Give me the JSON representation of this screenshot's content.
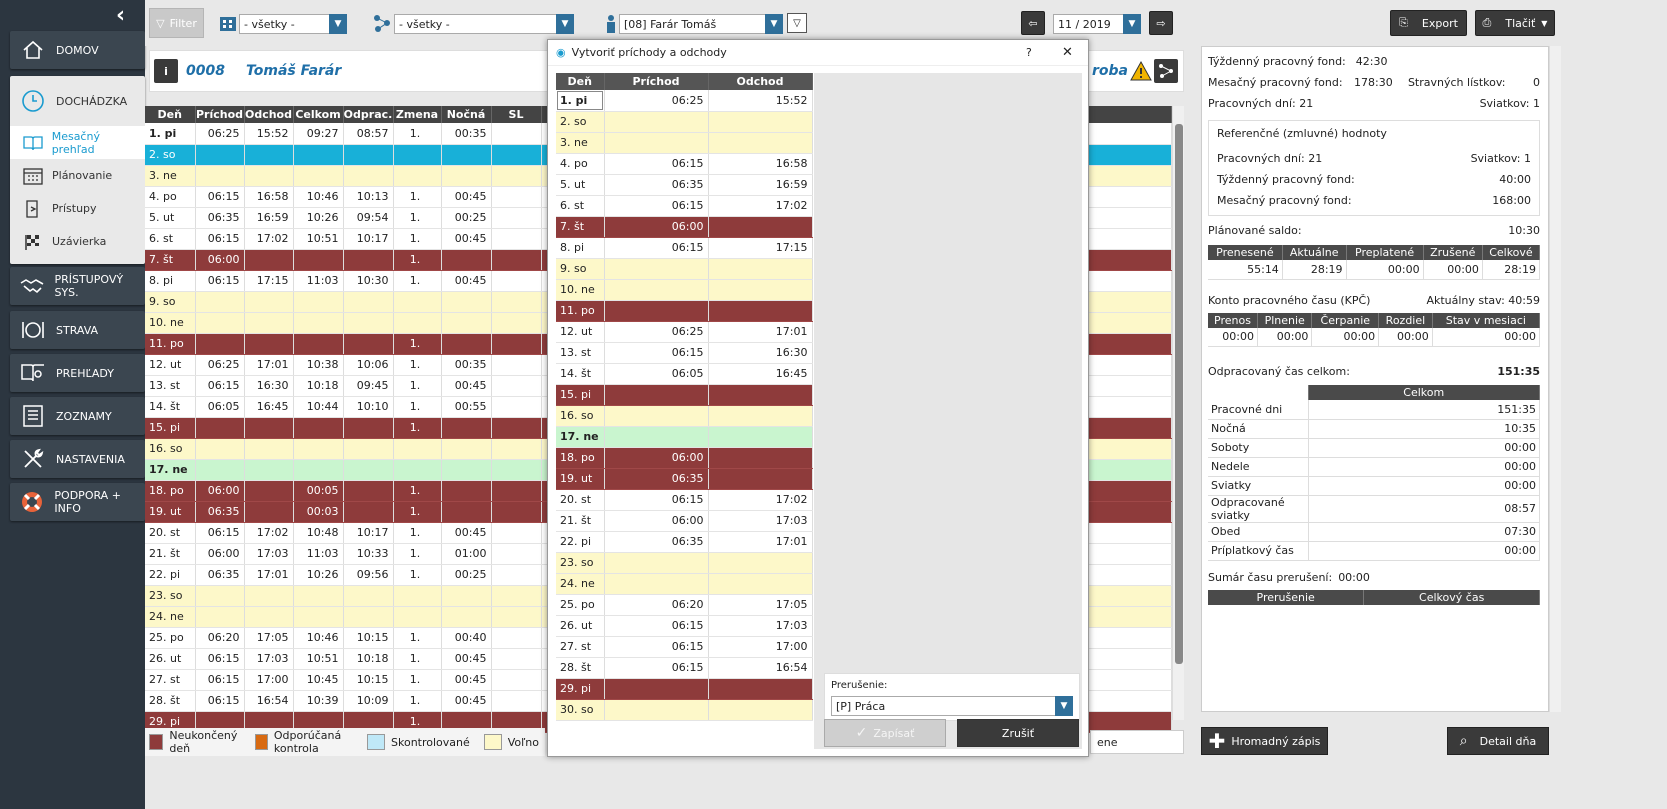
{
  "sidebar": {
    "home": "DOMOV",
    "attendance": "DOCHÁDZKA",
    "sub": [
      "Mesačný prehľad",
      "Plánovanie",
      "Prístupy",
      "Uzávierka"
    ],
    "access_sys": "PRÍSTUPOVÝ SYS.",
    "food": "STRAVA",
    "overviews": "PREHĽADY",
    "lists": "ZOZNAMY",
    "settings": "NASTAVENIA",
    "support": "PODPORA + INFO"
  },
  "toolbar": {
    "filter": "Filter",
    "select1": "- všetky -",
    "select2": "- všetky -",
    "employee": "[08] Farár Tomáš",
    "period": "11 / 2019",
    "export": "Export",
    "print": "Tlačiť"
  },
  "employee": {
    "id": "0008",
    "name": "Tomáš Farár",
    "dept": "roba"
  },
  "grid": {
    "headers": [
      "Deň",
      "Príchod",
      "Odchod",
      "Celkom",
      "Odprac.",
      "Zmena",
      "Nočná",
      "SL"
    ],
    "rows": [
      {
        "t": "h",
        "c": [
          "1. pi",
          "06:25",
          "15:52",
          "09:27",
          "08:57",
          "1.",
          "00:35",
          ""
        ]
      },
      {
        "t": "b",
        "c": [
          "2. so",
          "",
          "",
          "",
          "",
          "",
          "",
          ""
        ]
      },
      {
        "t": "y",
        "c": [
          "3. ne",
          "",
          "",
          "",
          "",
          "",
          "",
          ""
        ]
      },
      {
        "t": "w",
        "c": [
          "4. po",
          "06:15",
          "16:58",
          "10:46",
          "10:13",
          "1.",
          "00:45",
          ""
        ]
      },
      {
        "t": "w",
        "c": [
          "5. ut",
          "06:35",
          "16:59",
          "10:26",
          "09:54",
          "1.",
          "00:25",
          ""
        ]
      },
      {
        "t": "w",
        "c": [
          "6. st",
          "06:15",
          "17:02",
          "10:51",
          "10:17",
          "1.",
          "00:45",
          ""
        ]
      },
      {
        "t": "r",
        "c": [
          "7. št",
          "06:00",
          "",
          "",
          "",
          "1.",
          "",
          ""
        ]
      },
      {
        "t": "w",
        "c": [
          "8. pi",
          "06:15",
          "17:15",
          "11:03",
          "10:30",
          "1.",
          "00:45",
          ""
        ]
      },
      {
        "t": "y",
        "c": [
          "9. so",
          "",
          "",
          "",
          "",
          "",
          "",
          ""
        ]
      },
      {
        "t": "y",
        "c": [
          "10. ne",
          "",
          "",
          "",
          "",
          "",
          "",
          ""
        ]
      },
      {
        "t": "r",
        "c": [
          "11. po",
          "",
          "",
          "",
          "",
          "1.",
          "",
          ""
        ]
      },
      {
        "t": "w",
        "c": [
          "12. ut",
          "06:25",
          "17:01",
          "10:38",
          "10:06",
          "1.",
          "00:35",
          ""
        ]
      },
      {
        "t": "w",
        "c": [
          "13. st",
          "06:15",
          "16:30",
          "10:18",
          "09:45",
          "1.",
          "00:45",
          ""
        ]
      },
      {
        "t": "w",
        "c": [
          "14. št",
          "06:05",
          "16:45",
          "10:44",
          "10:10",
          "1.",
          "00:55",
          ""
        ]
      },
      {
        "t": "r",
        "c": [
          "15. pi",
          "",
          "",
          "",
          "",
          "1.",
          "",
          ""
        ]
      },
      {
        "t": "y",
        "c": [
          "16. so",
          "",
          "",
          "",
          "",
          "",
          "",
          ""
        ]
      },
      {
        "t": "g",
        "c": [
          "17. ne",
          "",
          "",
          "",
          "",
          "",
          "",
          ""
        ]
      },
      {
        "t": "r",
        "c": [
          "18. po",
          "06:00",
          "",
          "00:05",
          "",
          "1.",
          "",
          ""
        ]
      },
      {
        "t": "r",
        "c": [
          "19. ut",
          "06:35",
          "",
          "00:03",
          "",
          "1.",
          "",
          ""
        ]
      },
      {
        "t": "w",
        "c": [
          "20. st",
          "06:15",
          "17:02",
          "10:48",
          "10:17",
          "1.",
          "00:45",
          ""
        ]
      },
      {
        "t": "w",
        "c": [
          "21. št",
          "06:00",
          "17:03",
          "11:03",
          "10:33",
          "1.",
          "01:00",
          ""
        ]
      },
      {
        "t": "w",
        "c": [
          "22. pi",
          "06:35",
          "17:01",
          "10:26",
          "09:56",
          "1.",
          "00:25",
          ""
        ]
      },
      {
        "t": "y",
        "c": [
          "23. so",
          "",
          "",
          "",
          "",
          "",
          "",
          ""
        ]
      },
      {
        "t": "y",
        "c": [
          "24. ne",
          "",
          "",
          "",
          "",
          "",
          "",
          ""
        ]
      },
      {
        "t": "w",
        "c": [
          "25. po",
          "06:20",
          "17:05",
          "10:46",
          "10:15",
          "1.",
          "00:40",
          ""
        ]
      },
      {
        "t": "w",
        "c": [
          "26. ut",
          "06:15",
          "17:03",
          "10:51",
          "10:18",
          "1.",
          "00:45",
          ""
        ]
      },
      {
        "t": "w",
        "c": [
          "27. st",
          "06:15",
          "17:00",
          "10:45",
          "10:15",
          "1.",
          "00:45",
          ""
        ]
      },
      {
        "t": "w",
        "c": [
          "28. št",
          "06:15",
          "16:54",
          "10:39",
          "10:09",
          "1.",
          "00:45",
          ""
        ]
      },
      {
        "t": "r",
        "c": [
          "29. pi",
          "",
          "",
          "",
          "",
          "1.",
          "",
          ""
        ]
      }
    ]
  },
  "legend": [
    "Neukončený deň",
    "Odporúčaná kontrola",
    "Skontrolované",
    "Voľno",
    "ene"
  ],
  "dialog": {
    "title": "Vytvoriť príchody a odchody",
    "help": "?",
    "close": "✕",
    "headers": [
      "Deň",
      "Príchod",
      "Odchod"
    ],
    "rows": [
      {
        "t": "h",
        "c": [
          "1. pi",
          "06:25",
          "15:52"
        ]
      },
      {
        "t": "y",
        "c": [
          "2. so",
          "",
          ""
        ]
      },
      {
        "t": "y",
        "c": [
          "3. ne",
          "",
          ""
        ]
      },
      {
        "t": "w",
        "c": [
          "4. po",
          "06:15",
          "16:58"
        ]
      },
      {
        "t": "w",
        "c": [
          "5. ut",
          "06:35",
          "16:59"
        ]
      },
      {
        "t": "w",
        "c": [
          "6. st",
          "06:15",
          "17:02"
        ]
      },
      {
        "t": "r",
        "c": [
          "7. št",
          "06:00",
          ""
        ]
      },
      {
        "t": "w",
        "c": [
          "8. pi",
          "06:15",
          "17:15"
        ]
      },
      {
        "t": "y",
        "c": [
          "9. so",
          "",
          ""
        ]
      },
      {
        "t": "y",
        "c": [
          "10. ne",
          "",
          ""
        ]
      },
      {
        "t": "r",
        "c": [
          "11. po",
          "",
          ""
        ]
      },
      {
        "t": "w",
        "c": [
          "12. ut",
          "06:25",
          "17:01"
        ]
      },
      {
        "t": "w",
        "c": [
          "13. st",
          "06:15",
          "16:30"
        ]
      },
      {
        "t": "w",
        "c": [
          "14. št",
          "06:05",
          "16:45"
        ]
      },
      {
        "t": "r",
        "c": [
          "15. pi",
          "",
          ""
        ]
      },
      {
        "t": "y",
        "c": [
          "16. so",
          "",
          ""
        ]
      },
      {
        "t": "g",
        "c": [
          "17. ne",
          "",
          ""
        ]
      },
      {
        "t": "r",
        "c": [
          "18. po",
          "06:00",
          ""
        ]
      },
      {
        "t": "r",
        "c": [
          "19. ut",
          "06:35",
          ""
        ]
      },
      {
        "t": "w",
        "c": [
          "20. st",
          "06:15",
          "17:02"
        ]
      },
      {
        "t": "w",
        "c": [
          "21. št",
          "06:00",
          "17:03"
        ]
      },
      {
        "t": "w",
        "c": [
          "22. pi",
          "06:35",
          "17:01"
        ]
      },
      {
        "t": "y",
        "c": [
          "23. so",
          "",
          ""
        ]
      },
      {
        "t": "y",
        "c": [
          "24. ne",
          "",
          ""
        ]
      },
      {
        "t": "w",
        "c": [
          "25. po",
          "06:20",
          "17:05"
        ]
      },
      {
        "t": "w",
        "c": [
          "26. ut",
          "06:15",
          "17:03"
        ]
      },
      {
        "t": "w",
        "c": [
          "27. st",
          "06:15",
          "17:00"
        ]
      },
      {
        "t": "w",
        "c": [
          "28. št",
          "06:15",
          "16:54"
        ]
      },
      {
        "t": "r",
        "c": [
          "29. pi",
          "",
          ""
        ]
      },
      {
        "t": "y",
        "c": [
          "30. so",
          "",
          ""
        ]
      }
    ],
    "break_label": "Prerušenie:",
    "break_value": "[P] Práca",
    "save": "Zapísať",
    "cancel": "Zrušiť"
  },
  "right": {
    "weekly_fund": "Týždenný pracovný fond:",
    "weekly_fund_val": "42:30",
    "monthly_fund": "Mesačný pracovný fond:",
    "monthly_fund_val": "178:30",
    "meal": "Stravných lístkov:",
    "meal_val": "0",
    "workdays": "Pracovných dní:",
    "workdays_val": "21",
    "holidays": "Sviatkov:",
    "holidays_val": "1",
    "ref_title": "Referenčné (zmluvné) hodnoty",
    "ref_workdays": "Pracovných dní:",
    "ref_workdays_val": "21",
    "ref_holidays": "Sviatkov:",
    "ref_holidays_val": "1",
    "ref_weekly": "Týždenný pracovný fond:",
    "ref_weekly_val": "40:00",
    "ref_monthly": "Mesačný pracovný fond:",
    "ref_monthly_val": "168:00",
    "planned": "Plánované saldo:",
    "planned_val": "10:30",
    "saldo_headers": [
      "Prenesené",
      "Aktuálne",
      "Preplatené",
      "Zrušené",
      "Celkové"
    ],
    "saldo_values": [
      "55:14",
      "28:19",
      "00:00",
      "00:00",
      "28:19"
    ],
    "kpc": "Konto pracovného času (KPČ)",
    "kpc_state": "Aktuálny stav:",
    "kpc_state_val": "40:59",
    "kpc_headers": [
      "Prenos",
      "Plnenie",
      "Čerpanie",
      "Rozdiel",
      "Stav v mesiaci"
    ],
    "kpc_values": [
      "00:00",
      "00:00",
      "00:00",
      "00:00",
      "00:00"
    ],
    "worked": "Odpracovaný čas celkom:",
    "worked_val": "151:35",
    "worked_header": "Celkom",
    "worked_rows": [
      [
        "Pracovné dni",
        "151:35"
      ],
      [
        "Nočná",
        "10:35"
      ],
      [
        "Soboty",
        "00:00"
      ],
      [
        "Nedele",
        "00:00"
      ],
      [
        "Sviatky",
        "00:00"
      ],
      [
        "Odpracované sviatky",
        "08:57"
      ],
      [
        "Obed",
        "07:30"
      ],
      [
        "Príplatkový čas",
        "00:00"
      ]
    ],
    "breaks": "Sumár času prerušení:",
    "breaks_val": "00:00",
    "break_headers": [
      "Prerušenie",
      "Celkový čas"
    ]
  },
  "bottom": {
    "bulk": "Hromadný zápis",
    "detail": "Detail dňa"
  },
  "colors": {
    "unfinished": "#8e3b3b",
    "recommended": "#d86a12",
    "checked": "#bfe8f7",
    "free": "#fdf8c9",
    "accent": "#1a9bcf"
  }
}
